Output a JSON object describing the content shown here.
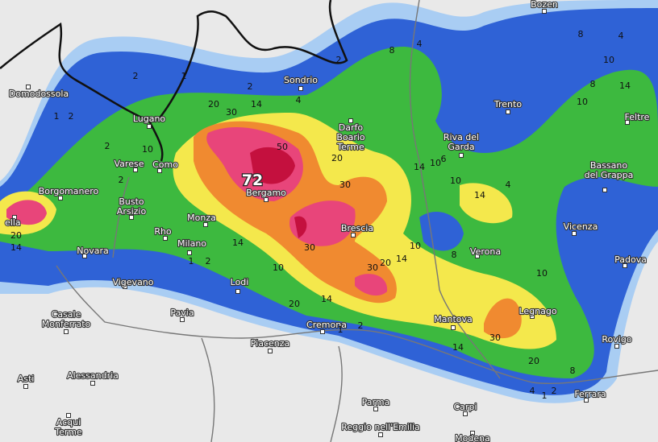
{
  "cities": [
    {
      "name": [
        "Bozen"
      ]
    },
    {
      "name": [
        "Domodossola"
      ]
    },
    {
      "name": [
        "Sondrio"
      ]
    },
    {
      "name": [
        "Trento"
      ]
    },
    {
      "name": [
        "Feltre"
      ]
    },
    {
      "name": [
        "Lugano"
      ]
    },
    {
      "name": [
        "Darfo",
        "Boario",
        "Terme"
      ]
    },
    {
      "name": [
        "Riva del",
        "Garda"
      ]
    },
    {
      "name": [
        "Varese"
      ]
    },
    {
      "name": [
        "Como"
      ]
    },
    {
      "name": [
        "Bassano",
        "del Grappa"
      ]
    },
    {
      "name": [
        "Borgomanero"
      ]
    },
    {
      "name": [
        "Bergamo"
      ]
    },
    {
      "name": [
        "Busto",
        "Arsizio"
      ]
    },
    {
      "name": [
        "Monza"
      ]
    },
    {
      "name": [
        "Vicenza"
      ]
    },
    {
      "name": [
        "Brescia"
      ]
    },
    {
      "name": [
        "Rho"
      ]
    },
    {
      "name": [
        "Novara"
      ]
    },
    {
      "name": [
        "Milano"
      ]
    },
    {
      "name": [
        "Verona"
      ]
    },
    {
      "name": [
        "Padova"
      ]
    },
    {
      "name": [
        "Vigevano"
      ]
    },
    {
      "name": [
        "Lodi"
      ]
    },
    {
      "name": [
        "Casale",
        "Monferrato"
      ]
    },
    {
      "name": [
        "Pavia"
      ]
    },
    {
      "name": [
        "Mantova"
      ]
    },
    {
      "name": [
        "Legnago"
      ]
    },
    {
      "name": [
        "Cremona"
      ]
    },
    {
      "name": [
        "Rovigo"
      ]
    },
    {
      "name": [
        "Piacenza"
      ]
    },
    {
      "name": [
        "Alessandria"
      ]
    },
    {
      "name": [
        "Asti"
      ]
    },
    {
      "name": [
        "Ferrara"
      ]
    },
    {
      "name": [
        "Parma"
      ]
    },
    {
      "name": [
        "Carpi"
      ]
    },
    {
      "name": [
        "Reggio nell'Emilia"
      ]
    },
    {
      "name": [
        "Acqui",
        "Terme"
      ]
    },
    {
      "name": [
        "Modena"
      ]
    },
    {
      "name": [
        "ella"
      ]
    }
  ],
  "max_label": "72",
  "contour_labels": [
    "2",
    "1",
    "2",
    "4",
    "20",
    "30",
    "14",
    "50",
    "2",
    "8",
    "4",
    "8",
    "10",
    "14",
    "10",
    "8",
    "30",
    "20",
    "30",
    "30",
    "20",
    "14",
    "10",
    "8",
    "10",
    "14",
    "14",
    "4",
    "10",
    "10",
    "30",
    "14",
    "20",
    "8",
    "20",
    "14",
    "10",
    "14",
    "2",
    "1",
    "10",
    "2",
    "2",
    "1",
    "20",
    "14",
    "2",
    "1",
    "2",
    "2",
    "4",
    "1",
    "4",
    "6"
  ]
}
